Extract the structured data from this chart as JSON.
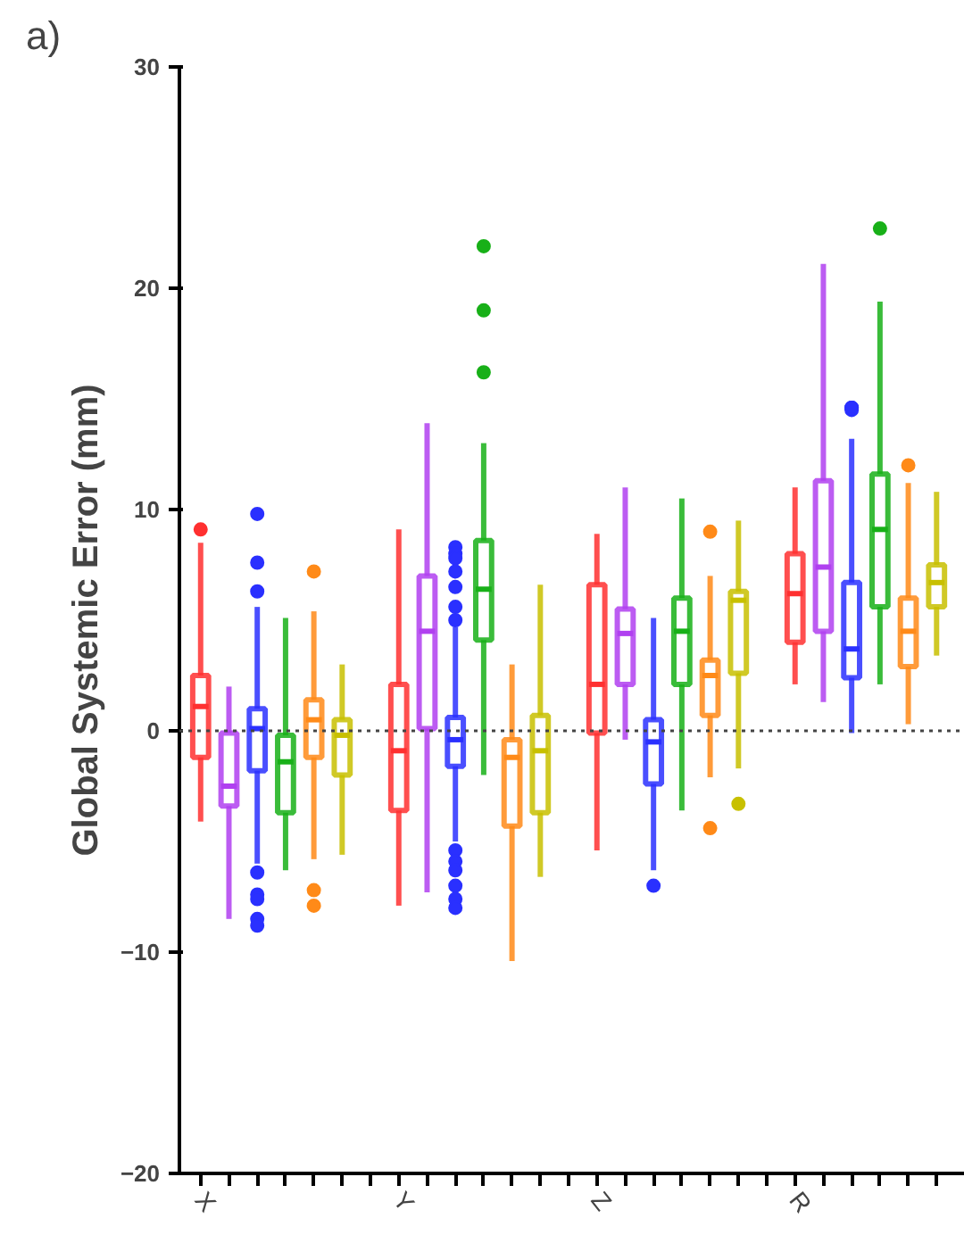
{
  "chart_data": {
    "type": "box",
    "annotations": [
      "a)"
    ],
    "ylabel": "Global Systemic Error (mm)",
    "categories": [
      "X",
      null,
      null,
      null,
      null,
      null,
      null,
      "Y",
      null,
      null,
      null,
      null,
      null,
      null,
      "Z",
      null,
      null,
      null,
      null,
      null,
      null,
      "R",
      null,
      null,
      null,
      null,
      null
    ],
    "colors": [
      "#ff3030",
      "#b040f0",
      "#2a30ff",
      "#18b018",
      "#ff8a18",
      "#c8c000",
      null,
      "#ff3030",
      "#b040f0",
      "#2a30ff",
      "#18b018",
      "#ff8a18",
      "#c8c000",
      null,
      "#ff3030",
      "#b040f0",
      "#2a30ff",
      "#18b018",
      "#ff8a18",
      "#c8c000",
      null,
      "#ff3030",
      "#b040f0",
      "#2a30ff",
      "#18b018",
      "#ff8a18",
      "#c8c000"
    ],
    "boxes": [
      {
        "low": -4.1,
        "q1": -1.2,
        "median": 1.1,
        "q3": 2.5,
        "high": 8.5,
        "outliers": [
          9.1
        ]
      },
      {
        "low": -8.5,
        "q1": -3.4,
        "median": -2.5,
        "q3": -0.1,
        "high": 2.0
      },
      {
        "low": -6.0,
        "q1": -1.8,
        "median": 0.1,
        "q3": 1.0,
        "high": 5.6,
        "outliers": [
          9.8,
          7.6,
          6.3,
          -6.4,
          -7.4,
          -7.6,
          -8.5,
          -8.8
        ]
      },
      {
        "low": -6.3,
        "q1": -3.7,
        "median": -1.4,
        "q3": -0.2,
        "high": 5.1
      },
      {
        "low": -5.8,
        "q1": -1.2,
        "median": 0.5,
        "q3": 1.4,
        "high": 5.4,
        "outliers": [
          7.2,
          -7.2,
          -7.9
        ]
      },
      {
        "low": -5.6,
        "q1": -2.0,
        "median": -0.2,
        "q3": 0.5,
        "high": 3.0
      },
      null,
      {
        "low": -7.9,
        "q1": -3.6,
        "median": -0.9,
        "q3": 2.1,
        "high": 9.1
      },
      {
        "low": -7.3,
        "q1": 0.1,
        "median": 4.5,
        "q3": 7.0,
        "high": 13.9
      },
      {
        "low": -5.0,
        "q1": -1.6,
        "median": -0.4,
        "q3": 0.6,
        "high": 4.7,
        "outliers": [
          8.3,
          8.0,
          7.8,
          7.2,
          6.5,
          5.6,
          5.0,
          -5.4,
          -5.9,
          -6.3,
          -7.0,
          -7.6,
          -8.0
        ]
      },
      {
        "low": -2.0,
        "q1": 4.1,
        "median": 6.4,
        "q3": 8.6,
        "high": 13.0,
        "outliers": [
          21.9,
          19.0,
          16.2
        ]
      },
      {
        "low": -10.4,
        "q1": -4.3,
        "median": -1.2,
        "q3": -0.4,
        "high": 3.0
      },
      {
        "low": -6.6,
        "q1": -3.7,
        "median": -0.9,
        "q3": 0.7,
        "high": 6.6
      },
      null,
      {
        "low": -5.4,
        "q1": -0.1,
        "median": 2.1,
        "q3": 6.6,
        "high": 8.9
      },
      {
        "low": -0.4,
        "q1": 2.1,
        "median": 4.4,
        "q3": 5.5,
        "high": 11.0
      },
      {
        "low": -6.3,
        "q1": -2.4,
        "median": -0.5,
        "q3": 0.5,
        "high": 5.1,
        "outliers": [
          -7.0
        ]
      },
      {
        "low": -3.6,
        "q1": 2.1,
        "median": 4.5,
        "q3": 6.0,
        "high": 10.5
      },
      {
        "low": -2.1,
        "q1": 0.7,
        "median": 2.5,
        "q3": 3.2,
        "high": 7.0,
        "outliers": [
          9.0,
          -4.4
        ]
      },
      {
        "low": -1.7,
        "q1": 2.6,
        "median": 5.9,
        "q3": 6.3,
        "high": 9.5,
        "outliers": [
          -3.3
        ]
      },
      null,
      {
        "low": 2.1,
        "q1": 4.0,
        "median": 6.2,
        "q3": 8.0,
        "high": 11.0
      },
      {
        "low": 1.3,
        "q1": 4.5,
        "median": 7.4,
        "q3": 11.3,
        "high": 21.1
      },
      {
        "low": -0.1,
        "q1": 2.4,
        "median": 3.7,
        "q3": 6.7,
        "high": 13.2,
        "outliers": [
          14.6,
          14.6,
          14.5,
          14.6
        ]
      },
      {
        "low": 2.1,
        "q1": 5.6,
        "median": 9.1,
        "q3": 11.6,
        "high": 19.4,
        "outliers": [
          22.7
        ]
      },
      {
        "low": 0.3,
        "q1": 2.9,
        "median": 4.5,
        "q3": 6.0,
        "high": 11.2,
        "outliers": [
          12.0
        ]
      },
      {
        "low": 3.4,
        "q1": 5.6,
        "median": 6.7,
        "q3": 7.5,
        "high": 10.8
      }
    ],
    "ylim": [
      -20,
      30
    ],
    "yticks": [
      -20,
      -10,
      0,
      10,
      20,
      30
    ],
    "ref_lines": [
      {
        "axis": "y",
        "value": 0,
        "line_style": "dotted",
        "color": "#444444"
      }
    ],
    "grid": false
  }
}
